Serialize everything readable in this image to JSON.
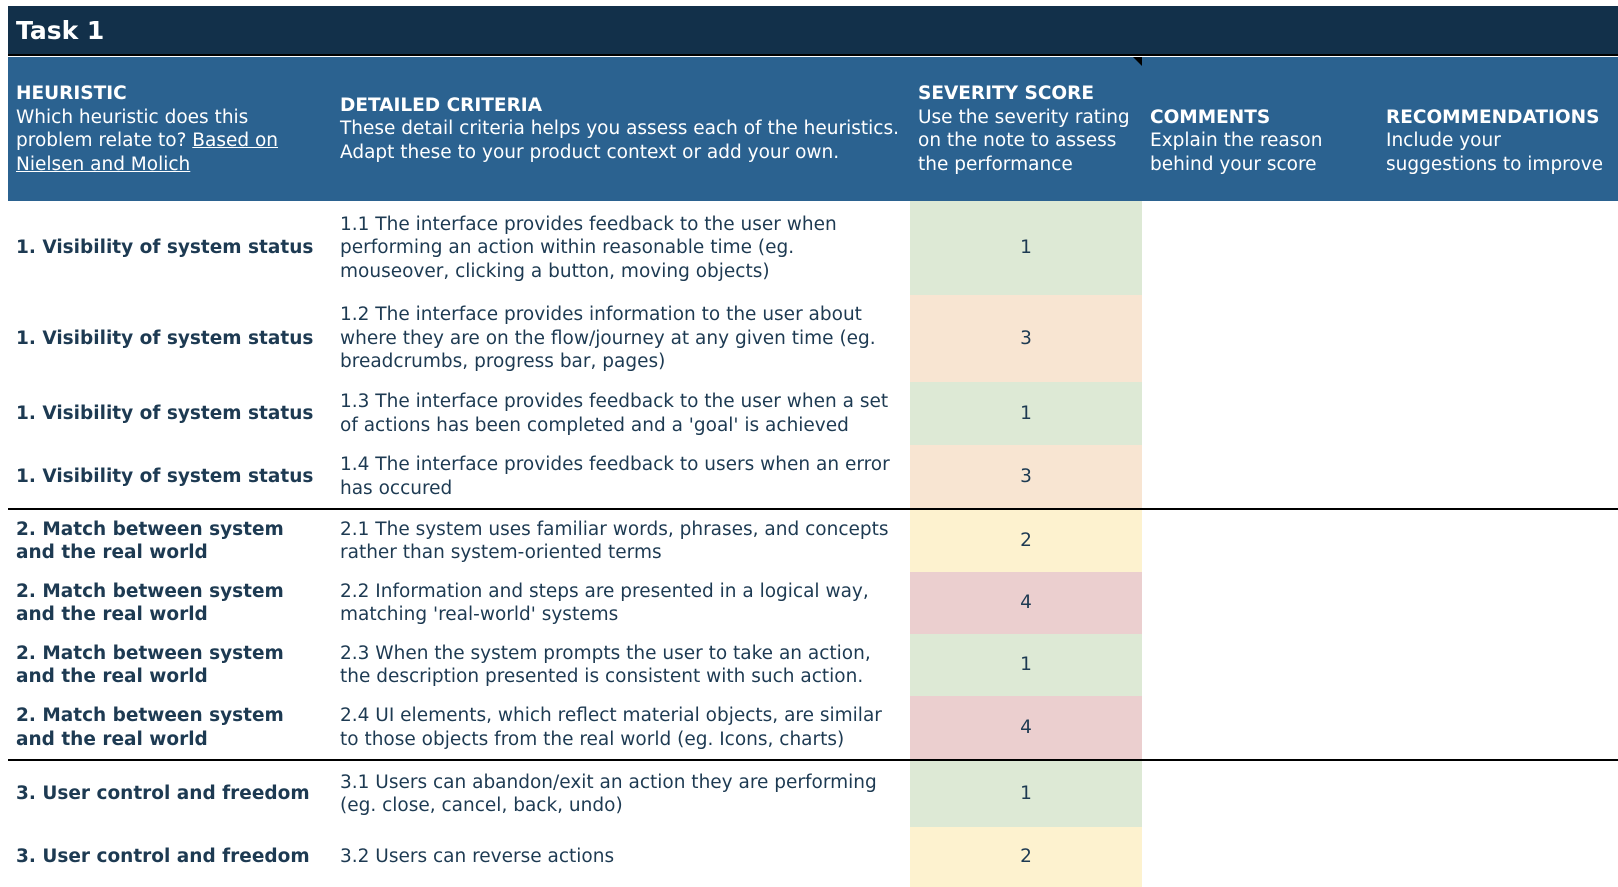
{
  "title": "Task 1",
  "header": {
    "heuristic": {
      "label": "HEURISTIC",
      "text": "Which heuristic does this problem relate to?",
      "link": "Based on Nielsen and Molich"
    },
    "criteria": {
      "label": "DETAILED CRITERIA",
      "text": "These detail criteria helps you assess each of the heuristics. Adapt these to your product context or add your own."
    },
    "severity": {
      "label": "SEVERITY SCORE",
      "text": "Use the severity rating on the note to assess the performance"
    },
    "comments": {
      "label": "COMMENTS",
      "text": "Explain the reason behind your score"
    },
    "recommendations": {
      "label": "RECOMMENDATIONS",
      "text": "Include your suggestions to improve"
    }
  },
  "groups": [
    {
      "rows": [
        {
          "heuristic": "1. Visibility of system status",
          "criteria": "1.1 The interface provides feedback to the user when performing an action within reasonable time (eg. mouseover, clicking a button, moving objects)",
          "score": 1,
          "color": "#dde9d5"
        },
        {
          "heuristic": "1. Visibility of system status",
          "criteria": "1.2 The interface provides information to the user about where they are on the flow/journey at any given time (eg. breadcrumbs, progress bar, pages)",
          "score": 3,
          "color": "#f8e5d2"
        },
        {
          "heuristic": "1. Visibility of system status",
          "criteria": "1.3 The interface provides feedback to the user when a set of actions has been completed and a 'goal' is achieved",
          "score": 1,
          "color": "#dde9d5"
        },
        {
          "heuristic": "1. Visibility of system status",
          "criteria": "1.4 The interface provides feedback to users when an error has occured",
          "score": 3,
          "color": "#f8e5d2"
        }
      ]
    },
    {
      "rows": [
        {
          "heuristic": "2. Match between system and the real world",
          "criteria": "2.1 The system uses familiar words, phrases, and concepts rather than system-oriented terms",
          "score": 2,
          "color": "#fdf2cf"
        },
        {
          "heuristic": "2. Match between system and the real world",
          "criteria": "2.2 Information and steps are presented in a logical way, matching 'real-world' systems",
          "score": 4,
          "color": "#ebcfcf"
        },
        {
          "heuristic": "2. Match between system and the real world",
          "criteria": "2.3 When the system prompts the user to take an action, the description presented is consistent with such action.",
          "score": 1,
          "color": "#dde9d5"
        },
        {
          "heuristic": "2. Match between system and the real world",
          "criteria": "2.4 UI elements, which reflect material objects, are similar to those objects from the real world (eg. Icons, charts)",
          "score": 4,
          "color": "#ebcfcf"
        }
      ]
    },
    {
      "rows": [
        {
          "heuristic": "3. User control and freedom",
          "criteria": "3.1 Users can abandon/exit an action they are performing (eg. close, cancel, back, undo)",
          "score": 1,
          "color": "#dde9d5"
        },
        {
          "heuristic": "3. User control and freedom",
          "criteria": "3.2 Users can reverse actions",
          "score": 2,
          "color": "#fdf2cf"
        }
      ]
    }
  ]
}
